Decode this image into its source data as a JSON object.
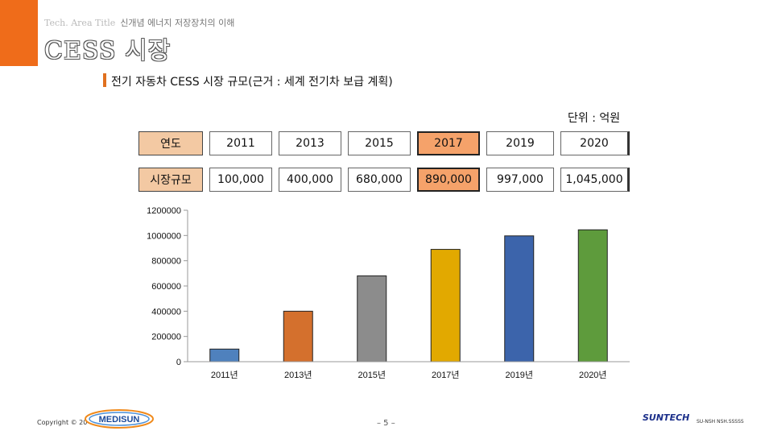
{
  "header": {
    "faint_label": "Tech. Area Title",
    "course_title": "신개념 에너지 저장장치의 이해",
    "page_title": "CESS 시장"
  },
  "section_title": "전기 자동차 CESS 시장 규모(근거 : 세계 전기차 보급 계획)",
  "unit_note": "단위 : 억원",
  "table": {
    "row_headers": [
      "연도",
      "시장규모"
    ],
    "years": [
      "2011",
      "2013",
      "2015",
      "2017",
      "2019",
      "2020"
    ],
    "values": [
      "100,000",
      "400,000",
      "680,000",
      "890,000",
      "997,000",
      "1,045,000"
    ]
  },
  "chart_data": {
    "type": "bar",
    "categories": [
      "2011년",
      "2013년",
      "2015년",
      "2017년",
      "2019년",
      "2020년"
    ],
    "values": [
      100000,
      400000,
      680000,
      890000,
      997000,
      1045000
    ],
    "colors": [
      "#4f81bd",
      "#d4702d",
      "#8c8c8c",
      "#e2a900",
      "#3c64ab",
      "#5e9b3c"
    ],
    "y_ticks": [
      "0",
      "200000",
      "400000",
      "600000",
      "800000",
      "1000000",
      "1200000"
    ],
    "ylim": [
      0,
      1200000
    ],
    "title": "",
    "xlabel": "",
    "ylabel": "",
    "grid": false,
    "legend": "none"
  },
  "footer": {
    "copyright": "Copyright © 20",
    "logo_left": "MEDISUN",
    "page_number": "– 5 –",
    "logo_right": "SUNTECH",
    "tiny_right": "SU-NSH NSH.SSSSS"
  }
}
